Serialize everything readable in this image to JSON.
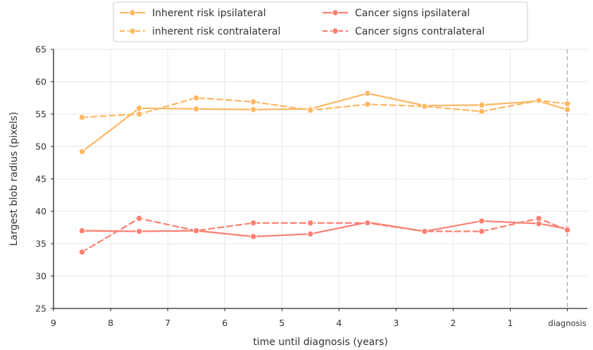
{
  "chart_data": {
    "type": "line",
    "xlabel": "time until diagnosis (years)",
    "ylabel": "Largest blob radius (pixels)",
    "xlim": [
      9,
      0
    ],
    "ylim": [
      25,
      65
    ],
    "x_ticks": [
      9,
      8,
      7,
      6,
      5,
      4,
      3,
      2,
      1
    ],
    "x_tick_labels": [
      "9",
      "8",
      "7",
      "6",
      "5",
      "4",
      "3",
      "2",
      "1"
    ],
    "y_ticks": [
      25,
      30,
      35,
      40,
      45,
      50,
      55,
      60,
      65
    ],
    "y_tick_labels": [
      "25",
      "30",
      "35",
      "40",
      "45",
      "50",
      "55",
      "60",
      "65"
    ],
    "diagnosis_label": "diagnosis",
    "diagnosis_x": 0,
    "grid": true,
    "legend_position": "top-center",
    "series": [
      {
        "name": "Inherent risk ipsilateral",
        "color": "#fdb863",
        "linestyle": "solid",
        "x": [
          8.5,
          7.5,
          6.5,
          5.5,
          4.5,
          3.5,
          2.5,
          1.5,
          0.5,
          0
        ],
        "y": [
          49.2,
          55.9,
          55.8,
          55.7,
          55.8,
          58.2,
          56.3,
          56.4,
          57.0,
          55.7
        ]
      },
      {
        "name": "inherent risk contralateral",
        "color": "#fdb863",
        "linestyle": "dashed",
        "x": [
          8.5,
          7.5,
          6.5,
          5.5,
          4.5,
          3.5,
          2.5,
          1.5,
          0.5,
          0
        ],
        "y": [
          54.5,
          55.0,
          57.5,
          56.9,
          55.6,
          56.5,
          56.2,
          55.4,
          57.1,
          56.6
        ]
      },
      {
        "name": "Cancer signs ipsilateral",
        "color": "#fa8072",
        "linestyle": "solid",
        "x": [
          8.5,
          7.5,
          6.5,
          5.5,
          4.5,
          3.5,
          2.5,
          1.5,
          0.5,
          0
        ],
        "y": [
          37.0,
          36.9,
          37.0,
          36.1,
          36.5,
          38.3,
          36.9,
          38.5,
          38.1,
          37.3
        ]
      },
      {
        "name": "Cancer signs contralateral",
        "color": "#fa8072",
        "linestyle": "dashed",
        "x": [
          8.5,
          7.5,
          6.5,
          5.5,
          4.5,
          3.5,
          2.5,
          1.5,
          0.5,
          0
        ],
        "y": [
          33.7,
          38.9,
          37.0,
          38.2,
          38.2,
          38.2,
          36.9,
          36.9,
          38.9,
          37.1
        ]
      }
    ]
  }
}
